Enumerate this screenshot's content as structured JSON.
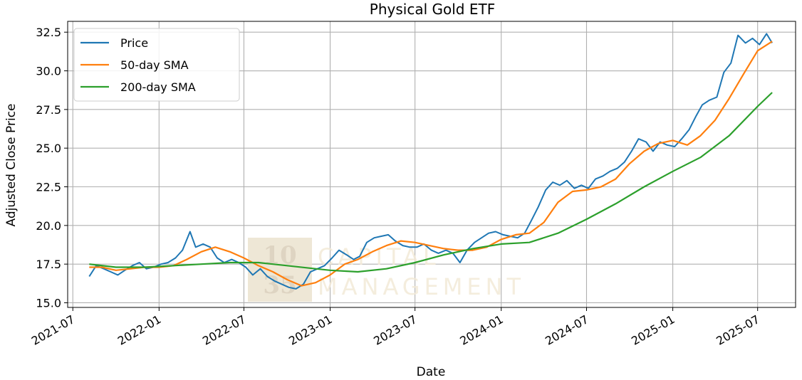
{
  "chart_data": {
    "type": "line",
    "title": "Physical Gold ETF",
    "xlabel": "Date",
    "ylabel": "Adjusted Close Price",
    "xlim": [
      "2021-06-20",
      "2025-09-20"
    ],
    "ylim": [
      14.7,
      33.2
    ],
    "x_ticks": [
      "2021-07",
      "2022-01",
      "2022-07",
      "2023-01",
      "2023-07",
      "2024-01",
      "2024-07",
      "2025-01",
      "2025-07"
    ],
    "y_ticks": [
      "15.0",
      "17.5",
      "20.0",
      "22.5",
      "25.0",
      "27.5",
      "30.0",
      "32.5"
    ],
    "grid": true,
    "legend_position": "upper-left",
    "watermark": {
      "line1": "10",
      "line2": "35",
      "text1": "CAPITAL",
      "text2": "MANAGEMENT"
    },
    "series": [
      {
        "name": "Price",
        "color": "#1f77b4",
        "x": [
          "2021-08-05",
          "2021-08-20",
          "2021-09-05",
          "2021-09-20",
          "2021-10-05",
          "2021-10-20",
          "2021-11-05",
          "2021-11-20",
          "2021-12-05",
          "2021-12-20",
          "2022-01-05",
          "2022-01-20",
          "2022-02-05",
          "2022-02-20",
          "2022-03-08",
          "2022-03-20",
          "2022-04-05",
          "2022-04-20",
          "2022-05-05",
          "2022-05-20",
          "2022-06-05",
          "2022-06-20",
          "2022-07-05",
          "2022-07-20",
          "2022-08-05",
          "2022-08-20",
          "2022-09-05",
          "2022-09-20",
          "2022-10-05",
          "2022-10-20",
          "2022-11-05",
          "2022-11-20",
          "2022-12-05",
          "2022-12-20",
          "2023-01-05",
          "2023-01-20",
          "2023-02-05",
          "2023-02-20",
          "2023-03-05",
          "2023-03-20",
          "2023-04-05",
          "2023-04-20",
          "2023-05-05",
          "2023-05-20",
          "2023-06-05",
          "2023-06-20",
          "2023-07-05",
          "2023-07-20",
          "2023-08-05",
          "2023-08-20",
          "2023-09-05",
          "2023-09-20",
          "2023-10-05",
          "2023-10-20",
          "2023-11-05",
          "2023-11-20",
          "2023-12-05",
          "2023-12-20",
          "2024-01-05",
          "2024-01-20",
          "2024-02-05",
          "2024-02-20",
          "2024-03-05",
          "2024-03-20",
          "2024-04-05",
          "2024-04-20",
          "2024-05-05",
          "2024-05-20",
          "2024-06-05",
          "2024-06-20",
          "2024-07-05",
          "2024-07-20",
          "2024-08-05",
          "2024-08-20",
          "2024-09-05",
          "2024-09-20",
          "2024-10-05",
          "2024-10-20",
          "2024-11-05",
          "2024-11-20",
          "2024-12-05",
          "2024-12-20",
          "2025-01-05",
          "2025-01-20",
          "2025-02-05",
          "2025-02-20",
          "2025-03-05",
          "2025-03-20",
          "2025-04-05",
          "2025-04-20",
          "2025-05-05",
          "2025-05-20",
          "2025-06-05",
          "2025-06-20",
          "2025-07-05",
          "2025-07-20",
          "2025-08-01"
        ],
        "y": [
          16.7,
          17.4,
          17.2,
          17.0,
          16.8,
          17.1,
          17.4,
          17.6,
          17.2,
          17.3,
          17.5,
          17.6,
          17.9,
          18.4,
          19.6,
          18.6,
          18.8,
          18.6,
          17.9,
          17.6,
          17.8,
          17.6,
          17.3,
          16.8,
          17.2,
          16.7,
          16.4,
          16.2,
          16.0,
          15.9,
          16.2,
          17.0,
          17.2,
          17.4,
          17.9,
          18.4,
          18.1,
          17.8,
          18.0,
          18.9,
          19.2,
          19.3,
          19.4,
          19.0,
          18.7,
          18.6,
          18.6,
          18.8,
          18.4,
          18.2,
          18.4,
          18.2,
          17.6,
          18.4,
          18.9,
          19.2,
          19.5,
          19.6,
          19.4,
          19.3,
          19.2,
          19.5,
          20.3,
          21.2,
          22.3,
          22.8,
          22.6,
          22.9,
          22.4,
          22.6,
          22.4,
          23.0,
          23.2,
          23.5,
          23.7,
          24.1,
          24.8,
          25.6,
          25.4,
          24.8,
          25.4,
          25.2,
          25.1,
          25.6,
          26.2,
          27.1,
          27.8,
          28.1,
          28.3,
          29.9,
          30.5,
          32.3,
          31.8,
          32.1,
          31.7,
          32.4,
          31.8
        ]
      },
      {
        "name": "50-day SMA",
        "color": "#ff7f0e",
        "x": [
          "2021-08-05",
          "2021-09-01",
          "2021-10-01",
          "2021-11-01",
          "2021-12-01",
          "2022-01-01",
          "2022-02-01",
          "2022-03-01",
          "2022-04-01",
          "2022-05-01",
          "2022-06-01",
          "2022-07-01",
          "2022-08-01",
          "2022-09-01",
          "2022-10-01",
          "2022-11-01",
          "2022-12-01",
          "2023-01-01",
          "2023-02-01",
          "2023-03-01",
          "2023-04-01",
          "2023-05-01",
          "2023-06-01",
          "2023-07-01",
          "2023-08-01",
          "2023-09-01",
          "2023-10-01",
          "2023-11-01",
          "2023-12-01",
          "2024-01-01",
          "2024-02-01",
          "2024-03-01",
          "2024-04-01",
          "2024-05-01",
          "2024-06-01",
          "2024-07-01",
          "2024-08-01",
          "2024-09-01",
          "2024-10-01",
          "2024-11-01",
          "2024-12-01",
          "2025-01-01",
          "2025-02-01",
          "2025-03-01",
          "2025-04-01",
          "2025-05-01",
          "2025-06-01",
          "2025-07-01",
          "2025-08-01"
        ],
        "y": [
          17.3,
          17.3,
          17.1,
          17.2,
          17.3,
          17.3,
          17.4,
          17.8,
          18.3,
          18.6,
          18.3,
          17.9,
          17.4,
          17.0,
          16.5,
          16.1,
          16.3,
          16.8,
          17.5,
          17.8,
          18.3,
          18.7,
          19.0,
          18.9,
          18.7,
          18.5,
          18.4,
          18.4,
          18.6,
          19.1,
          19.4,
          19.5,
          20.2,
          21.5,
          22.2,
          22.3,
          22.5,
          23.0,
          24.0,
          24.8,
          25.3,
          25.5,
          25.2,
          25.8,
          26.8,
          28.2,
          29.8,
          31.3,
          31.9
        ]
      },
      {
        "name": "200-day SMA",
        "color": "#2ca02c",
        "x": [
          "2021-08-05",
          "2021-10-01",
          "2021-12-01",
          "2022-02-01",
          "2022-04-01",
          "2022-06-01",
          "2022-08-01",
          "2022-10-01",
          "2022-12-01",
          "2023-01-01",
          "2023-03-01",
          "2023-05-01",
          "2023-07-01",
          "2023-09-01",
          "2023-11-01",
          "2024-01-01",
          "2024-03-01",
          "2024-05-01",
          "2024-07-01",
          "2024-09-01",
          "2024-11-01",
          "2025-01-01",
          "2025-03-01",
          "2025-05-01",
          "2025-07-01",
          "2025-08-01"
        ],
        "y": [
          17.5,
          17.3,
          17.3,
          17.4,
          17.5,
          17.6,
          17.6,
          17.4,
          17.2,
          17.1,
          17.0,
          17.2,
          17.6,
          18.1,
          18.5,
          18.8,
          18.9,
          19.5,
          20.4,
          21.4,
          22.5,
          23.5,
          24.4,
          25.8,
          27.7,
          28.6
        ]
      }
    ]
  }
}
